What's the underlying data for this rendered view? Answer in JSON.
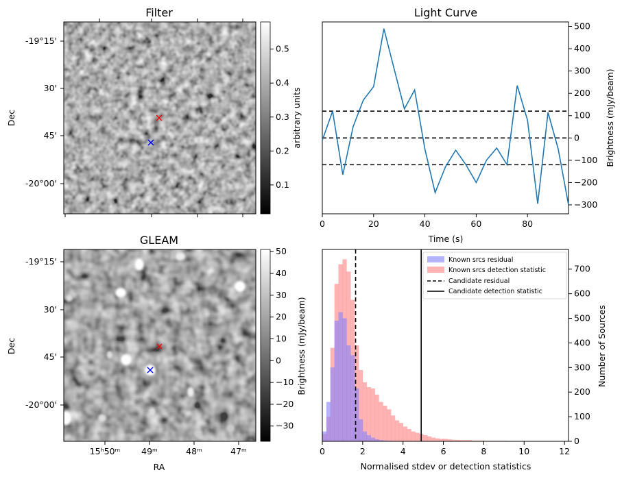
{
  "filter_panel": {
    "title": "Filter",
    "ylabel": "Dec",
    "dec_ticks": [
      "-19°15'",
      "30'",
      "45'",
      "-20°00'"
    ],
    "colorbar": {
      "label": "arbitrary units",
      "ticks": [
        "0.1",
        "0.2",
        "0.3",
        "0.4",
        "0.5"
      ],
      "tick_values": [
        0.1,
        0.2,
        0.3,
        0.4,
        0.5
      ],
      "range": [
        0.015,
        0.58
      ]
    },
    "markers": {
      "candidate_color": "#ff0000",
      "known_color": "#0000ff"
    }
  },
  "gleam_panel": {
    "title": "GLEAM",
    "ylabel": "Dec",
    "xlabel": "RA",
    "dec_ticks": [
      "-19°15'",
      "30'",
      "45'",
      "-20°00'"
    ],
    "ra_ticks": [
      "15ʰ50ᵐ",
      "49ᵐ",
      "48ᵐ",
      "47ᵐ"
    ],
    "colorbar": {
      "label": "Brightness (mJy/beam)",
      "ticks": [
        "50",
        "40",
        "30",
        "20",
        "10",
        "0",
        "−10",
        "−20",
        "−30"
      ],
      "tick_values": [
        50,
        40,
        30,
        20,
        10,
        0,
        -10,
        -20,
        -30
      ],
      "range": [
        -37,
        51
      ]
    },
    "markers": {
      "candidate_color": "#ff0000",
      "known_color": "#0000ff"
    }
  },
  "chart_data": [
    {
      "type": "line",
      "title": "Light Curve",
      "xlabel": "Time (s)",
      "ylabel": "Brightness (mJy/beam)",
      "xlim": [
        0,
        96
      ],
      "ylim": [
        -340,
        520
      ],
      "xticks": [
        0,
        20,
        40,
        60,
        80
      ],
      "yticks": [
        -300,
        -200,
        -100,
        0,
        100,
        200,
        300,
        400,
        500
      ],
      "line_color": "#1f77b4",
      "x": [
        0,
        4,
        8,
        12,
        16,
        20,
        24,
        28,
        32,
        36,
        40,
        44,
        48,
        52,
        56,
        60,
        64,
        68,
        72,
        76,
        80,
        84,
        88,
        92,
        96
      ],
      "y": [
        -10,
        120,
        -165,
        50,
        170,
        230,
        490,
        310,
        130,
        215,
        -50,
        -245,
        -130,
        -55,
        -120,
        -200,
        -100,
        -45,
        -120,
        235,
        80,
        -295,
        115,
        -50,
        -300
      ],
      "hlines": [
        120,
        0,
        -120
      ],
      "hline_style": "dashed"
    },
    {
      "type": "histogram",
      "title": "",
      "xlabel": "Normalised stdev or detection statistics",
      "ylabel": "Number of Sources",
      "xlim": [
        0,
        12.2
      ],
      "ylim": [
        0,
        780
      ],
      "xticks": [
        0,
        2,
        4,
        6,
        8,
        10,
        12
      ],
      "yticks": [
        0,
        100,
        200,
        300,
        400,
        500,
        600,
        700
      ],
      "bin_width": 0.2,
      "series": [
        {
          "name": "Known srcs residual",
          "color": "#8080ff",
          "bin_start": 0,
          "counts": [
            40,
            160,
            300,
            490,
            525,
            500,
            390,
            350,
            215,
            90,
            40,
            25,
            15,
            8,
            5,
            3,
            2,
            1,
            1,
            1
          ]
        },
        {
          "name": "Known srcs detection statistic",
          "color": "#ff8080",
          "bin_start": 0,
          "counts": [
            30,
            100,
            380,
            640,
            720,
            740,
            690,
            575,
            390,
            290,
            240,
            220,
            215,
            190,
            160,
            145,
            130,
            105,
            85,
            75,
            60,
            50,
            40,
            35,
            30,
            25,
            20,
            15,
            12,
            10,
            10,
            8,
            6,
            6,
            5,
            5,
            5,
            3,
            3,
            3,
            2,
            2,
            2,
            2,
            2,
            2,
            1,
            1,
            1,
            1,
            1,
            1,
            1,
            1,
            1,
            1,
            1,
            1,
            1,
            1
          ]
        }
      ],
      "vlines": [
        {
          "name": "Candidate residual",
          "x": 1.65,
          "style": "dashed"
        },
        {
          "name": "Candidate detection statistic",
          "x": 4.9,
          "style": "solid"
        }
      ]
    }
  ]
}
